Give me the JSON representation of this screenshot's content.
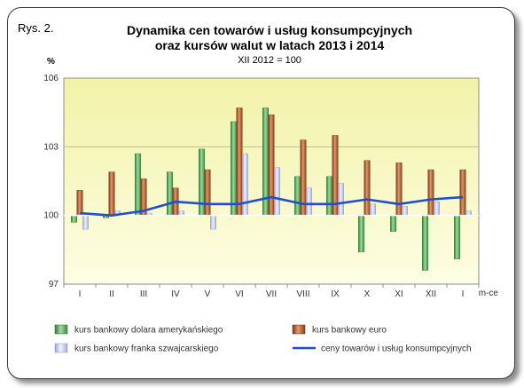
{
  "figure_label": "Rys. 2.",
  "chart_data": {
    "type": "bar",
    "title_lines": [
      "Dynamika cen towarów i usług konsumpcyjnych",
      "oraz kursów walut w latach 2013 i 2014"
    ],
    "subtitle": "XII 2012 = 100",
    "ylabel": "%",
    "xlabel": "m-ce",
    "categories": [
      "I",
      "II",
      "III",
      "IV",
      "V",
      "VI",
      "VII",
      "VIII",
      "IX",
      "X",
      "XI",
      "XII",
      "I"
    ],
    "ylim": [
      97,
      106
    ],
    "yticks": [
      "97",
      "100",
      "103",
      "106"
    ],
    "series": [
      {
        "name": "kurs bankowy dolara amerykańskiego",
        "kind": "bar",
        "color": "#5aa85a",
        "values": [
          99.7,
          99.9,
          102.7,
          101.9,
          102.9,
          104.1,
          104.7,
          101.7,
          101.7,
          98.4,
          99.3,
          97.6,
          98.1
        ]
      },
      {
        "name": "kurs bankowy euro",
        "kind": "bar",
        "color": "#a8532a",
        "values": [
          101.1,
          101.9,
          101.6,
          101.2,
          102.0,
          104.7,
          104.4,
          103.3,
          103.5,
          102.4,
          102.3,
          102.0,
          102.0
        ]
      },
      {
        "name": "kurs bankowy franka szwajcarskiego",
        "kind": "bar",
        "color": "#b4bce8",
        "values": [
          99.4,
          100.2,
          100.1,
          100.2,
          99.4,
          102.7,
          102.1,
          101.2,
          101.4,
          100.5,
          100.4,
          100.6,
          100.2
        ]
      },
      {
        "name": "ceny towarów i usług konsumpcyjnych",
        "kind": "line",
        "color": "#1f4fd1",
        "values": [
          100.1,
          100.0,
          100.2,
          100.6,
          100.5,
          100.5,
          100.8,
          100.5,
          100.5,
          100.7,
          100.5,
          100.7,
          100.8
        ]
      }
    ],
    "grid": true,
    "legend": "bottom"
  }
}
